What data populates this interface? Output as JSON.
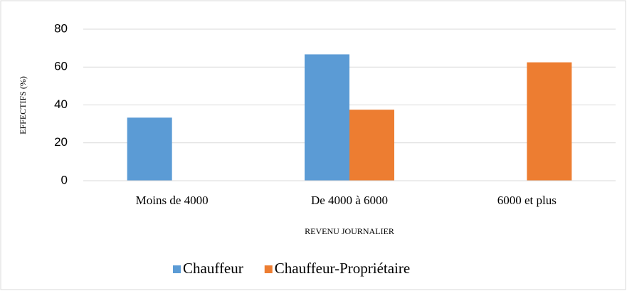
{
  "chart_data": {
    "type": "bar",
    "categories": [
      "Moins de 4000",
      "De 4000 à 6000",
      "6000 et plus"
    ],
    "series": [
      {
        "name": "Chauffeur",
        "color": "#5b9bd5",
        "values": [
          33.3,
          66.7,
          0
        ]
      },
      {
        "name": "Chauffeur-Propriétaire",
        "color": "#ed7d31",
        "values": [
          0,
          37.5,
          62.5
        ]
      }
    ],
    "xlabel": "REVENU JOURNALIER",
    "ylabel": "EFFECTIFS (%)",
    "ylim": [
      0,
      80
    ],
    "yticks": [
      0,
      20,
      40,
      60,
      80
    ],
    "grid": true,
    "legend": "bottom"
  }
}
